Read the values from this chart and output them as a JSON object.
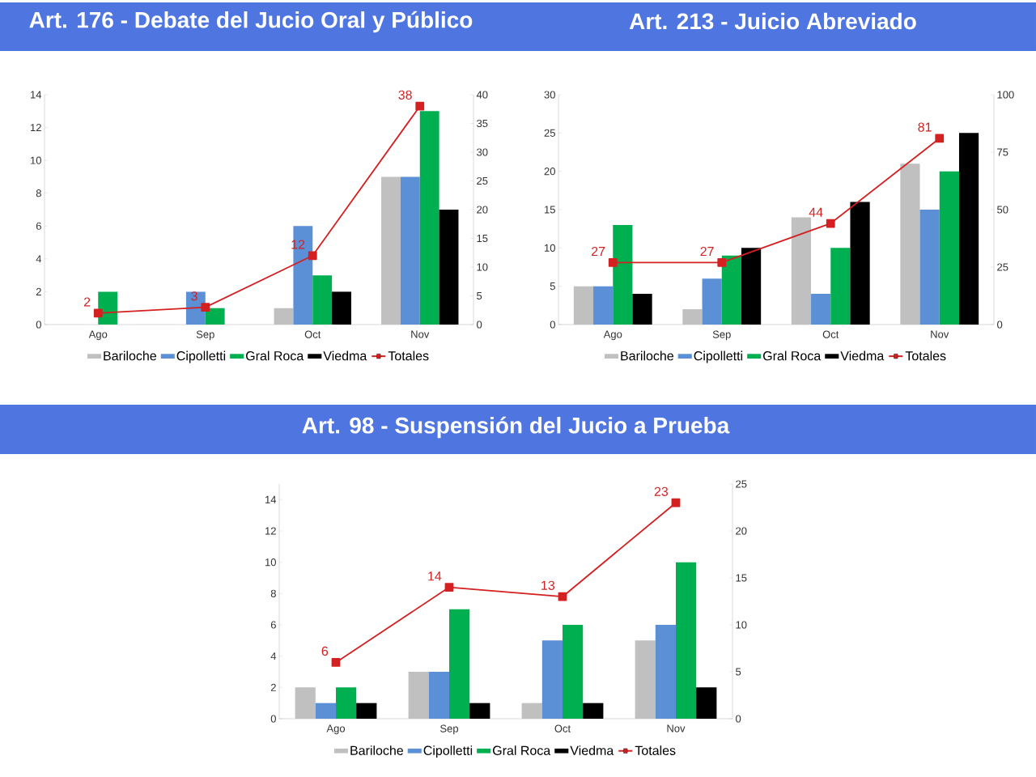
{
  "chart_data": [
    {
      "type": "bar",
      "title": "Art. 176 - Debate del Jucio Oral y Público",
      "categories": [
        "Ago",
        "Sep",
        "Oct",
        "Nov"
      ],
      "ylim": [
        0,
        14
      ],
      "yticks": [
        0,
        2,
        4,
        6,
        8,
        10,
        12,
        14
      ],
      "y2lim": [
        0,
        40
      ],
      "y2ticks": [
        0,
        5,
        10,
        15,
        20,
        25,
        30,
        35,
        40
      ],
      "legend": "bottom",
      "series": [
        {
          "name": "Bariloche",
          "color": "#c0c0c0",
          "values": [
            0,
            0,
            1,
            9
          ]
        },
        {
          "name": "Cipolletti",
          "color": "#5b8fd6",
          "values": [
            0,
            2,
            6,
            9
          ]
        },
        {
          "name": "Gral Roca",
          "color": "#00b050",
          "values": [
            2,
            1,
            3,
            13
          ]
        },
        {
          "name": "Viedma",
          "color": "#000000",
          "values": [
            0,
            0,
            2,
            7
          ]
        },
        {
          "name": "Totales",
          "color": "#d42020",
          "type": "line",
          "axis": "y2",
          "marker": "square",
          "line_style": "solid",
          "data_labels": true,
          "values": [
            2,
            3,
            12,
            38
          ]
        }
      ]
    },
    {
      "type": "bar",
      "title": "Art. 213 - Juicio Abreviado",
      "categories": [
        "Ago",
        "Sep",
        "Oct",
        "Nov"
      ],
      "ylim": [
        0,
        30
      ],
      "yticks": [
        0,
        5,
        10,
        15,
        20,
        25,
        30
      ],
      "y2lim": [
        0,
        100
      ],
      "y2ticks": [
        0,
        25,
        50,
        75,
        100
      ],
      "legend": "bottom",
      "series": [
        {
          "name": "Bariloche",
          "color": "#c0c0c0",
          "values": [
            5,
            2,
            14,
            21
          ]
        },
        {
          "name": "Cipolletti",
          "color": "#5b8fd6",
          "values": [
            5,
            6,
            4,
            15
          ]
        },
        {
          "name": "Gral Roca",
          "color": "#00b050",
          "values": [
            13,
            9,
            10,
            20
          ]
        },
        {
          "name": "Viedma",
          "color": "#000000",
          "values": [
            4,
            10,
            16,
            25
          ]
        },
        {
          "name": "Totales",
          "color": "#d42020",
          "type": "line",
          "axis": "y2",
          "marker": "square",
          "line_style": "solid",
          "data_labels": true,
          "values": [
            27,
            27,
            44,
            81
          ]
        }
      ]
    },
    {
      "type": "bar",
      "title": "Art. 98 - Suspensión del Jucio a Prueba",
      "categories": [
        "Ago",
        "Sep",
        "Oct",
        "Nov"
      ],
      "ylim": [
        0,
        15
      ],
      "yticks": [
        0,
        2,
        4,
        6,
        8,
        10,
        12,
        14
      ],
      "y2lim": [
        0,
        25
      ],
      "y2ticks": [
        0,
        5,
        10,
        15,
        20,
        25
      ],
      "legend": "bottom",
      "series": [
        {
          "name": "Bariloche",
          "color": "#c0c0c0",
          "values": [
            2,
            3,
            1,
            5
          ]
        },
        {
          "name": "Cipolletti",
          "color": "#5b8fd6",
          "values": [
            1,
            3,
            5,
            6
          ]
        },
        {
          "name": "Gral Roca",
          "color": "#00b050",
          "values": [
            2,
            7,
            6,
            10
          ]
        },
        {
          "name": "Viedma",
          "color": "#000000",
          "values": [
            1,
            1,
            1,
            2
          ]
        },
        {
          "name": "Totales",
          "color": "#d42020",
          "type": "line",
          "axis": "y2",
          "marker": "square",
          "line_style": "solid",
          "data_labels": true,
          "values": [
            6,
            14,
            13,
            23
          ]
        }
      ]
    }
  ]
}
